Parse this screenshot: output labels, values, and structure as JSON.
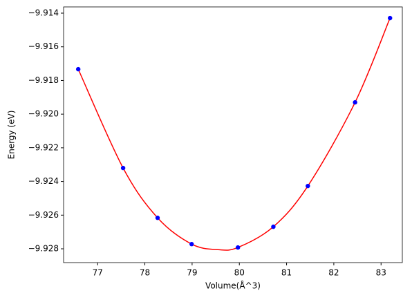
{
  "chart_data": {
    "type": "scatter",
    "xlabel": "Volume(Å^3)",
    "ylabel": "Energy (eV)",
    "xlim": [
      76.28,
      83.45
    ],
    "ylim": [
      -9.92882,
      -9.91363
    ],
    "xticks": [
      77,
      78,
      79,
      80,
      81,
      82,
      83
    ],
    "yticks": [
      {
        "value": -9.928,
        "label": "−9.928"
      },
      {
        "value": -9.926,
        "label": "−9.926"
      },
      {
        "value": -9.924,
        "label": "−9.924"
      },
      {
        "value": -9.922,
        "label": "−9.922"
      },
      {
        "value": -9.92,
        "label": "−9.920"
      },
      {
        "value": -9.918,
        "label": "−9.918"
      },
      {
        "value": -9.916,
        "label": "−9.916"
      },
      {
        "value": -9.914,
        "label": "−9.914"
      }
    ],
    "grid": false,
    "series": [
      {
        "kind": "line",
        "color": "#ff0000",
        "x": [
          76.59,
          77.54,
          78.27,
          78.99,
          79.55,
          79.97,
          80.72,
          81.45,
          82.45,
          83.19
        ],
        "values": [
          -9.91733,
          -9.9232,
          -9.92616,
          -9.92772,
          -9.92805,
          -9.92792,
          -9.92669,
          -9.92427,
          -9.9193,
          -9.91429
        ]
      },
      {
        "kind": "points",
        "color": "#0000ff",
        "x": [
          76.59,
          77.54,
          78.27,
          78.99,
          79.97,
          80.72,
          81.45,
          82.45,
          83.19
        ],
        "values": [
          -9.91733,
          -9.9232,
          -9.92616,
          -9.92772,
          -9.92792,
          -9.92669,
          -9.92427,
          -9.9193,
          -9.91429
        ]
      }
    ]
  }
}
